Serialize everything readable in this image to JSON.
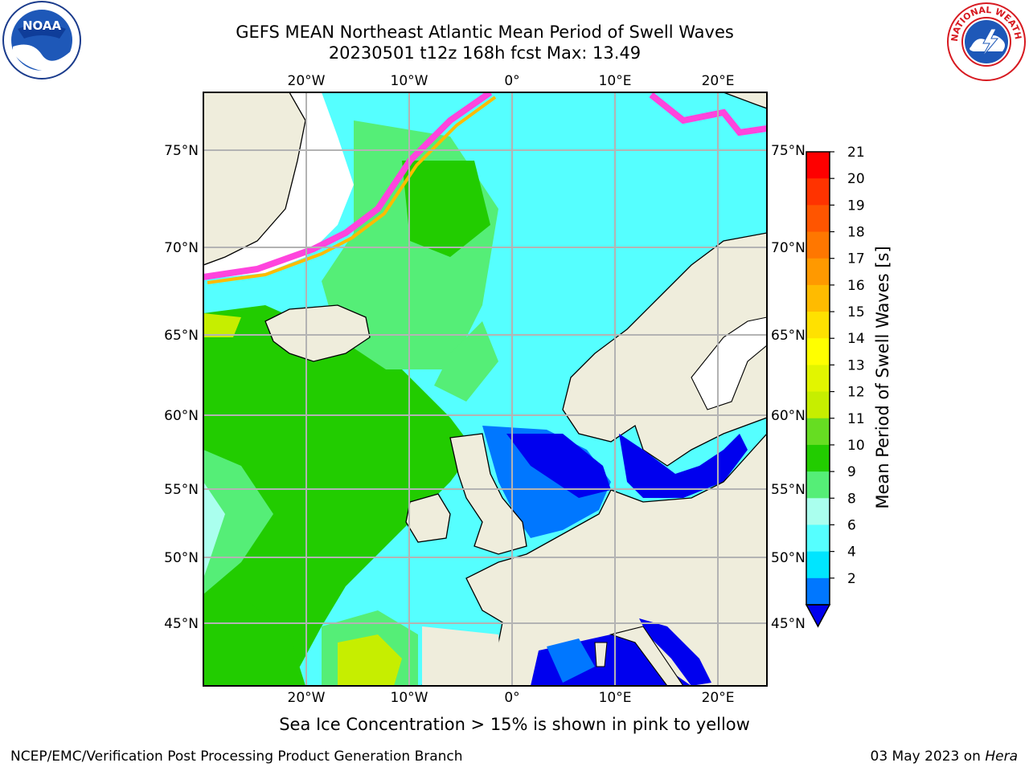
{
  "title_line1": "GEFS MEAN Northeast Atlantic Mean Period of Swell Waves",
  "title_line2": "20230501 t12z 168h fcst   Max: 13.49",
  "lon_ticks": [
    "20°W",
    "10°W",
    "0°",
    "10°E",
    "20°E"
  ],
  "lat_ticks": [
    "75°N",
    "70°N",
    "65°N",
    "60°N",
    "55°N",
    "50°N",
    "45°N"
  ],
  "colorbar": {
    "label": "Mean Period of Swell Waves [s]",
    "ticks": [
      "21",
      "20",
      "19",
      "18",
      "17",
      "16",
      "15",
      "14",
      "13",
      "12",
      "11",
      "10",
      "9",
      "8",
      "6",
      "4",
      "2"
    ],
    "colors": [
      "#fe0000",
      "#ff3300",
      "#ff5500",
      "#ff7700",
      "#ff9900",
      "#ffbb00",
      "#ffe100",
      "#ffff00",
      "#e2f500",
      "#c6ee00",
      "#66dd22",
      "#22cc00",
      "#55ee77",
      "#aaffee",
      "#55ffff",
      "#00e5ff",
      "#0077ff"
    ],
    "under_color": "#0000ee"
  },
  "ice_note": "Sea Ice Concentration > 15% is shown in pink to yellow",
  "credit": "NCEP/EMC/Verification Post Processing Product Generation Branch",
  "date_prefix": "03 May 2023 on ",
  "date_host": "Hera",
  "logos": {
    "left": "NOAA",
    "right": "NATIONAL WEATHER SERVICE"
  },
  "colors": {
    "land": "#efeddc",
    "ocean_cyan": "#55ffff",
    "ocean_green": "#55ee77",
    "ice_pink": "#ff44dd",
    "grid": "#b3b3b3"
  }
}
